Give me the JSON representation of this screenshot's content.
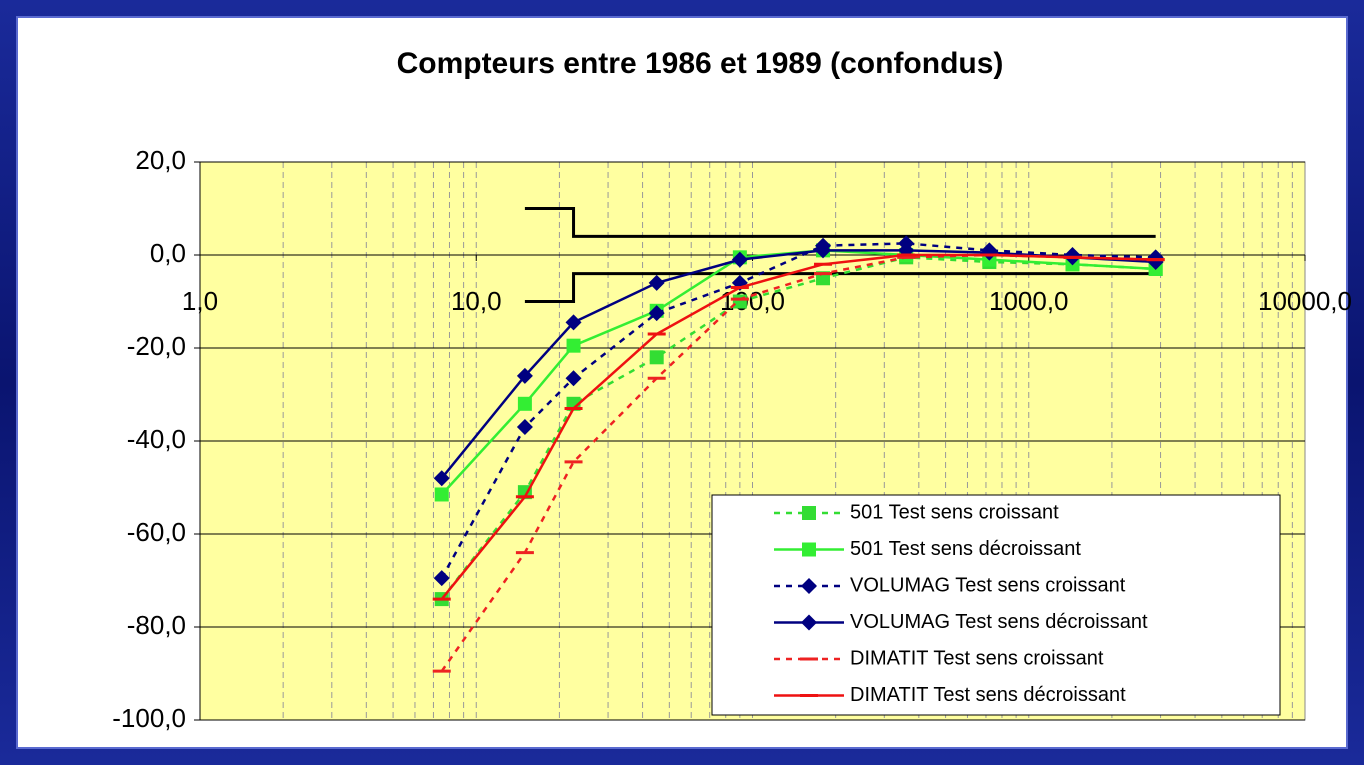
{
  "chart_data": {
    "type": "line",
    "title": "Compteurs entre 1986 et 1989 (confondus)",
    "x": [
      7.5,
      15,
      22.5,
      45,
      90,
      180,
      360,
      720,
      1440,
      2880
    ],
    "xscale": "log",
    "xlim": [
      1,
      10000
    ],
    "xticks": [
      {
        "value": 1,
        "label": "1,0"
      },
      {
        "value": 10,
        "label": "10,0"
      },
      {
        "value": 100,
        "label": "100,0"
      },
      {
        "value": 1000,
        "label": "1000,0"
      },
      {
        "value": 10000,
        "label": "10000,0"
      }
    ],
    "ylim": [
      -100,
      20
    ],
    "yticks": [
      {
        "value": 20,
        "label": "20,0"
      },
      {
        "value": 0,
        "label": "0,0"
      },
      {
        "value": -20,
        "label": "-20,0"
      },
      {
        "value": -40,
        "label": "-40,0"
      },
      {
        "value": -60,
        "label": "-60,0"
      },
      {
        "value": -80,
        "label": "-80,0"
      },
      {
        "value": -100,
        "label": "-100,0"
      }
    ],
    "grid": true,
    "xgrid_minor": true,
    "legend": "lower right",
    "series": [
      {
        "name": "501 Test sens croissant",
        "color": "#33dd33",
        "dashed": true,
        "marker": "square",
        "values": [
          -74,
          -51,
          -32,
          -22,
          -10,
          -5,
          -0.5,
          -1.5,
          -2,
          -3
        ]
      },
      {
        "name": "501 Test sens décroissant",
        "color": "#33ee33",
        "dashed": false,
        "marker": "square",
        "values": [
          -51.5,
          -32,
          -19.5,
          -12,
          -0.5,
          1,
          0,
          -1,
          -2,
          -3
        ]
      },
      {
        "name": "VOLUMAG Test sens croissant",
        "color": "#000080",
        "dashed": true,
        "marker": "diamond",
        "values": [
          -69.5,
          -37,
          -26.5,
          -12.5,
          -6,
          2,
          2.5,
          1,
          0,
          -0.5
        ]
      },
      {
        "name": "VOLUMAG Test sens décroissant",
        "color": "#000080",
        "dashed": false,
        "marker": "diamond",
        "values": [
          -48,
          -26,
          -14.5,
          -6,
          -1,
          1,
          1,
          0.5,
          -0.5,
          -1.5
        ]
      },
      {
        "name": "DIMATIT Test sens croissant",
        "color": "#ee2222",
        "dashed": true,
        "marker": "dash",
        "values": [
          -89.5,
          -64,
          -44.5,
          -26.5,
          -9.5,
          -4,
          -0.5,
          0,
          -0.5,
          -1
        ]
      },
      {
        "name": "DIMATIT Test sens décroissant",
        "color": "#ee1111",
        "dashed": false,
        "marker": "dash",
        "values": [
          -74,
          -52,
          -33,
          -17,
          -7,
          -2,
          0,
          0,
          -0.5,
          -1
        ]
      }
    ],
    "envelope": [
      {
        "color": "#000000",
        "x": [
          15,
          22.5,
          22.5,
          2880
        ],
        "values": [
          10,
          10,
          4,
          4
        ]
      },
      {
        "color": "#000000",
        "x": [
          15,
          22.5,
          22.5,
          2880
        ],
        "values": [
          -10,
          -10,
          -4,
          -4
        ]
      }
    ]
  }
}
